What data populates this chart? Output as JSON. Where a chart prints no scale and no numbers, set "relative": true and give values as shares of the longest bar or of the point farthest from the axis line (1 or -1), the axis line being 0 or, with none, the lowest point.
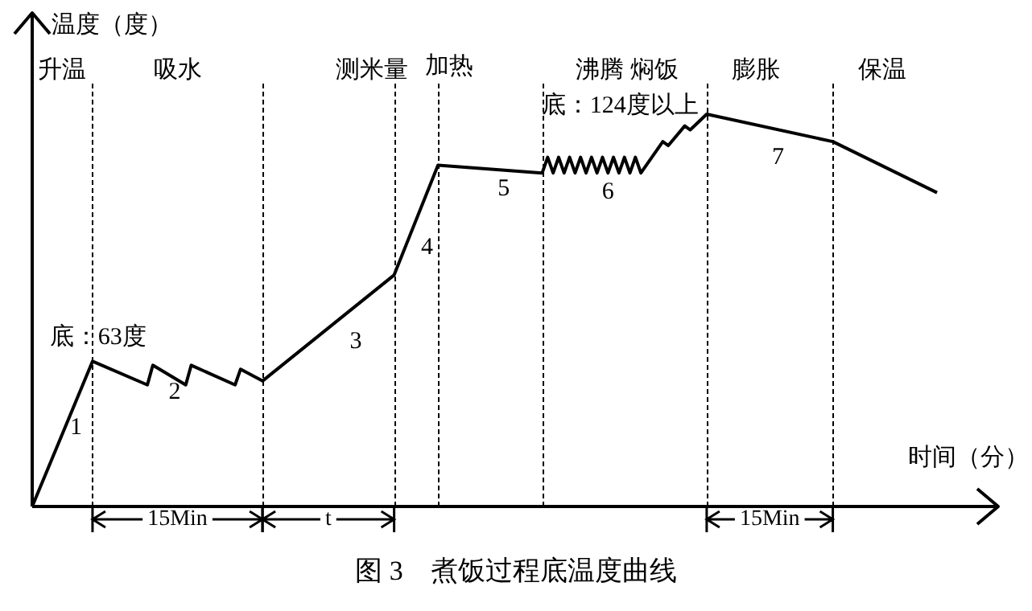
{
  "chart_data": {
    "type": "line",
    "relative": true,
    "title": "图 3　煮饭过程底温度曲线",
    "xlabel": "时间（分）",
    "ylabel": "温度（度）",
    "marker": "none",
    "line_style": "solid",
    "categories": [
      null,
      null,
      null,
      null,
      null,
      null,
      null,
      null,
      null,
      null,
      null,
      null,
      null,
      null,
      null,
      null,
      null,
      null,
      null,
      null,
      null,
      null,
      null,
      null,
      null,
      null,
      null,
      null,
      null,
      null,
      null,
      null,
      null,
      null,
      null,
      null,
      null,
      null,
      null,
      null,
      null,
      null,
      null,
      null,
      null,
      null,
      null,
      null,
      null,
      null,
      null,
      null,
      null,
      null,
      null,
      null,
      null,
      null,
      null,
      null,
      null,
      null,
      null,
      null,
      null,
      null,
      null,
      null,
      null,
      null,
      null,
      null,
      null,
      null,
      null,
      null,
      null,
      null,
      null,
      null,
      null,
      null,
      null,
      null,
      null,
      null,
      null,
      null,
      null,
      null,
      null,
      null,
      null,
      null,
      null,
      null,
      null,
      null,
      null,
      null,
      null,
      null,
      null,
      null,
      null,
      null,
      null,
      null,
      null,
      null,
      null,
      null,
      null,
      null,
      null,
      null,
      null,
      null,
      null,
      null,
      null,
      null,
      null,
      null,
      null,
      null,
      null,
      null,
      null,
      null,
      null,
      null,
      null,
      null,
      null,
      null,
      null,
      null,
      null,
      null,
      null,
      null,
      null,
      null,
      null,
      null,
      null,
      null,
      null,
      null,
      null,
      null,
      null,
      null,
      null,
      null,
      null,
      null,
      null,
      null,
      null,
      null,
      null,
      null,
      null,
      null
    ],
    "series": [
      {
        "color": "#000000",
        "values": [
          0,
          null,
          null,
          null,
          null,
          null,
          null,
          null,
          null,
          null,
          null,
          0.37,
          null,
          null,
          null,
          null,
          null,
          null,
          null,
          null,
          null,
          0.31,
          0.36,
          null,
          null,
          null,
          null,
          null,
          0.31,
          0.36,
          null,
          null,
          null,
          null,
          null,
          null,
          null,
          0.31,
          0.35,
          null,
          null,
          null,
          0.32,
          null,
          null,
          null,
          null,
          null,
          null,
          null,
          null,
          null,
          null,
          null,
          null,
          null,
          null,
          null,
          null,
          null,
          null,
          null,
          null,
          null,
          null,
          null,
          0.59,
          null,
          null,
          null,
          null,
          null,
          null,
          null,
          0.87,
          null,
          null,
          null,
          null,
          null,
          null,
          null,
          null,
          null,
          null,
          null,
          null,
          null,
          null,
          null,
          null,
          null,
          null,
          0.85,
          0.89,
          0.85,
          0.89,
          0.85,
          0.89,
          0.85,
          0.89,
          0.85,
          0.89,
          0.85,
          0.89,
          0.85,
          0.89,
          0.85,
          0.89,
          0.85,
          0.89,
          0.85,
          null,
          null,
          null,
          0.93,
          0.92,
          null,
          null,
          0.97,
          0.96,
          null,
          null,
          1,
          null,
          null,
          null,
          null,
          null,
          null,
          null,
          null,
          null,
          null,
          null,
          null,
          null,
          null,
          null,
          null,
          null,
          null,
          null,
          null,
          null,
          null,
          0.93,
          null,
          null,
          null,
          null,
          null,
          null,
          null,
          null,
          null,
          null,
          null,
          null,
          null,
          null,
          null,
          null,
          null,
          null,
          0.8
        ]
      }
    ],
    "annotations": [
      "升温",
      "吸水",
      "测米量",
      "加热",
      "沸腾 焖饭",
      "膨胀",
      "保温",
      "底：63度",
      "底：124度以上",
      "1",
      "2",
      "3",
      "4",
      "5",
      "6",
      "7",
      "15Min",
      "t",
      "15Min"
    ]
  }
}
